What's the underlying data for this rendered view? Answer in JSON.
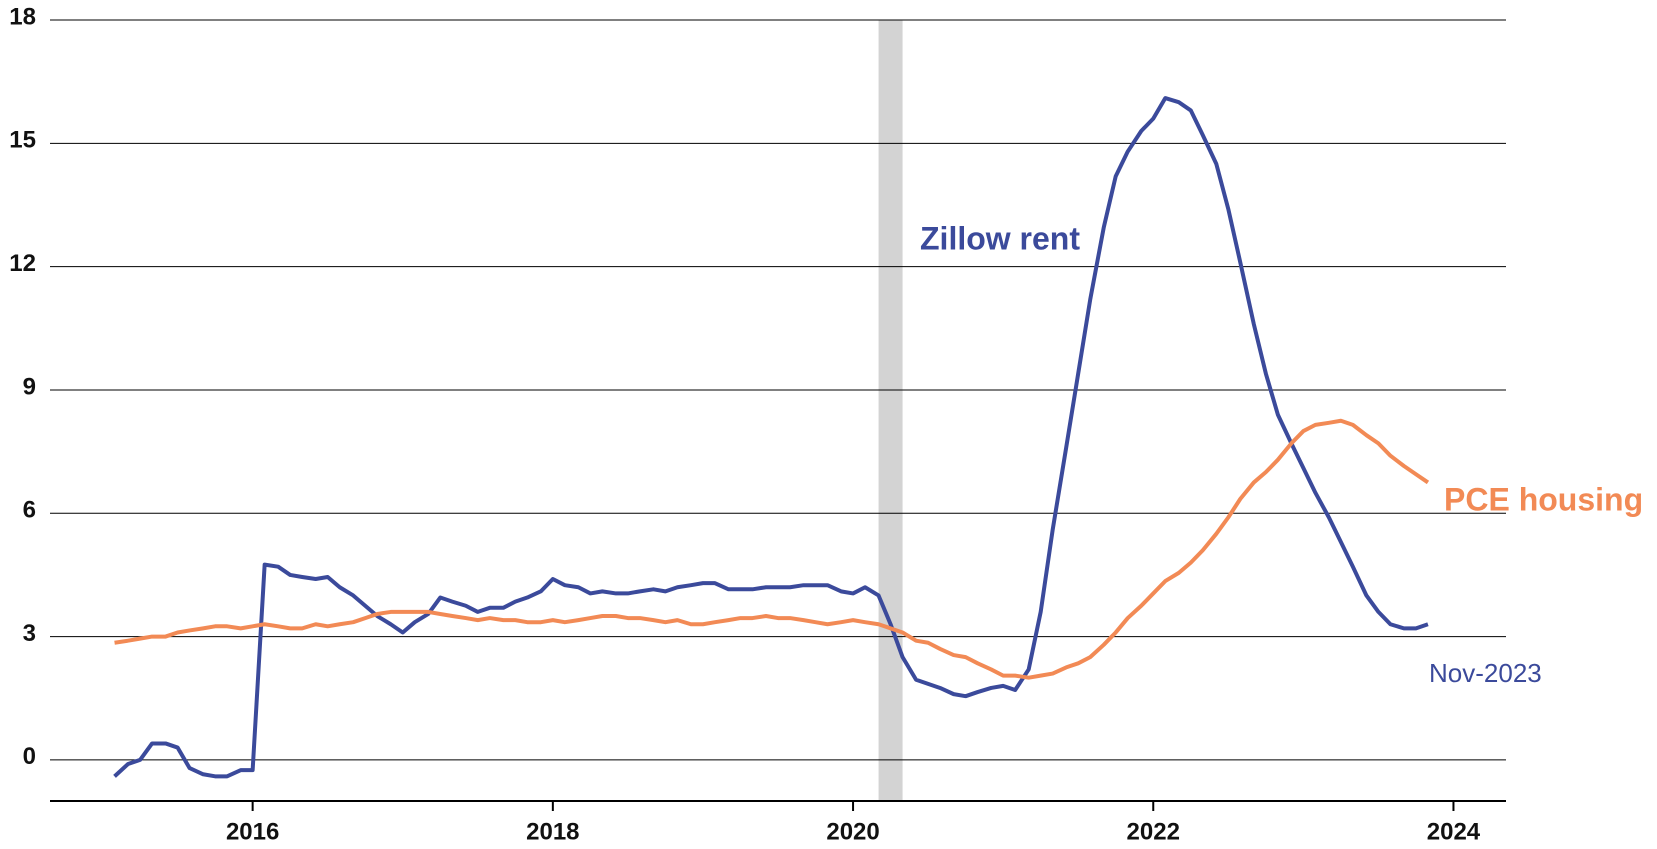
{
  "chart_data": {
    "type": "line",
    "annotations": [
      "Zillow rent",
      "PCE housing",
      "Nov-2023"
    ],
    "x": [
      2015.08,
      2015.17,
      2015.25,
      2015.33,
      2015.42,
      2015.5,
      2015.58,
      2015.67,
      2015.75,
      2015.83,
      2015.92,
      2016,
      2016.08,
      2016.17,
      2016.25,
      2016.33,
      2016.42,
      2016.5,
      2016.58,
      2016.67,
      2016.75,
      2016.83,
      2016.92,
      2017,
      2017.08,
      2017.17,
      2017.25,
      2017.33,
      2017.42,
      2017.5,
      2017.58,
      2017.67,
      2017.75,
      2017.83,
      2017.92,
      2018,
      2018.08,
      2018.17,
      2018.25,
      2018.33,
      2018.42,
      2018.5,
      2018.58,
      2018.67,
      2018.75,
      2018.83,
      2018.92,
      2019,
      2019.08,
      2019.17,
      2019.25,
      2019.33,
      2019.42,
      2019.5,
      2019.58,
      2019.67,
      2019.75,
      2019.83,
      2019.92,
      2020,
      2020.08,
      2020.17,
      2020.25,
      2020.33,
      2020.42,
      2020.5,
      2020.58,
      2020.67,
      2020.75,
      2020.83,
      2020.92,
      2021,
      2021.08,
      2021.17,
      2021.25,
      2021.33,
      2021.42,
      2021.5,
      2021.58,
      2021.67,
      2021.75,
      2021.83,
      2021.92,
      2022,
      2022.08,
      2022.17,
      2022.25,
      2022.33,
      2022.42,
      2022.5,
      2022.58,
      2022.67,
      2022.75,
      2022.83,
      2022.92,
      2023,
      2023.08,
      2023.17,
      2023.25,
      2023.33,
      2023.42,
      2023.5,
      2023.58,
      2023.67,
      2023.75,
      2023.83
    ],
    "series": [
      {
        "name": "Zillow rent",
        "color": "#3b4a9b",
        "values": [
          -0.4,
          -0.1,
          0.0,
          0.4,
          0.4,
          0.3,
          -0.2,
          -0.35,
          -0.4,
          -0.4,
          -0.25,
          -0.25,
          4.75,
          4.7,
          4.5,
          4.45,
          4.4,
          4.45,
          4.2,
          4.0,
          3.75,
          3.5,
          3.3,
          3.1,
          3.35,
          3.55,
          3.95,
          3.85,
          3.75,
          3.6,
          3.7,
          3.7,
          3.85,
          3.95,
          4.1,
          4.4,
          4.25,
          4.2,
          4.05,
          4.1,
          4.05,
          4.05,
          4.1,
          4.15,
          4.1,
          4.2,
          4.25,
          4.3,
          4.3,
          4.15,
          4.15,
          4.15,
          4.2,
          4.2,
          4.2,
          4.25,
          4.25,
          4.25,
          4.1,
          4.05,
          4.2,
          4.0,
          3.3,
          2.5,
          1.95,
          1.85,
          1.75,
          1.6,
          1.55,
          1.65,
          1.75,
          1.8,
          1.7,
          2.2,
          3.6,
          5.6,
          7.6,
          9.4,
          11.2,
          12.95,
          14.2,
          14.8,
          15.3,
          15.6,
          16.1,
          16.0,
          15.8,
          15.2,
          14.5,
          13.4,
          12.1,
          10.6,
          9.4,
          8.4,
          7.7,
          7.1,
          6.5,
          5.9,
          5.3,
          4.7,
          4.0,
          3.6,
          3.3,
          3.2,
          3.2,
          3.3
        ]
      },
      {
        "name": "PCE housing",
        "color": "#f28a55",
        "values": [
          2.85,
          2.9,
          2.95,
          3.0,
          3.0,
          3.1,
          3.15,
          3.2,
          3.25,
          3.25,
          3.2,
          3.25,
          3.3,
          3.25,
          3.2,
          3.2,
          3.3,
          3.25,
          3.3,
          3.35,
          3.45,
          3.55,
          3.6,
          3.6,
          3.6,
          3.6,
          3.55,
          3.5,
          3.45,
          3.4,
          3.45,
          3.4,
          3.4,
          3.35,
          3.35,
          3.4,
          3.35,
          3.4,
          3.45,
          3.5,
          3.5,
          3.45,
          3.45,
          3.4,
          3.35,
          3.4,
          3.3,
          3.3,
          3.35,
          3.4,
          3.45,
          3.45,
          3.5,
          3.45,
          3.45,
          3.4,
          3.35,
          3.3,
          3.35,
          3.4,
          3.35,
          3.3,
          3.2,
          3.1,
          2.9,
          2.85,
          2.7,
          2.55,
          2.5,
          2.35,
          2.2,
          2.05,
          2.05,
          2.0,
          2.05,
          2.1,
          2.25,
          2.35,
          2.5,
          2.8,
          3.1,
          3.45,
          3.75,
          4.05,
          4.35,
          4.55,
          4.8,
          5.1,
          5.5,
          5.9,
          6.35,
          6.75,
          7.0,
          7.3,
          7.7,
          8.0,
          8.15,
          8.2,
          8.25,
          8.15,
          7.9,
          7.7,
          7.4,
          7.15,
          6.95,
          6.75
        ]
      }
    ],
    "shade": [
      2020.17,
      2020.33
    ],
    "shade_color": "#d3d3d3",
    "xlim": [
      2014.65,
      2024.35
    ],
    "xticks": [
      2016,
      2018,
      2020,
      2022,
      2024
    ],
    "ylim": [
      -1,
      18
    ],
    "yticks": [
      0,
      3,
      6,
      9,
      12,
      15,
      18
    ],
    "grid": true
  }
}
